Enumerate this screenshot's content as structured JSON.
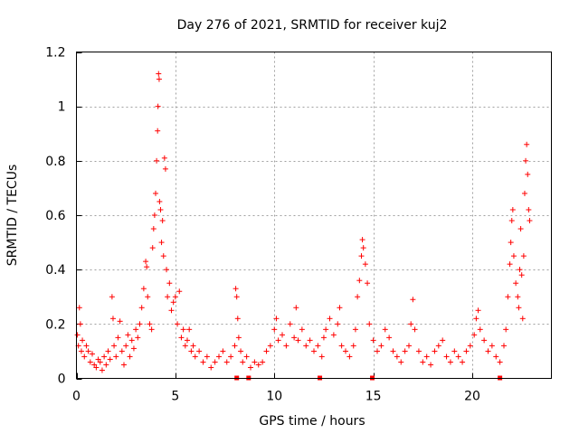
{
  "chart_data": {
    "type": "scatter",
    "title": "Day 276 of 2021, SRMTID for receiver kuj2",
    "xlabel": "GPS time / hours",
    "ylabel": "SRMTID / TECUs",
    "xlim": [
      0,
      24
    ],
    "ylim": [
      0,
      1.2
    ],
    "x_ticks": [
      0,
      5,
      10,
      15,
      20
    ],
    "x_tick_labels": [
      "0",
      "5",
      "10",
      "15",
      "20"
    ],
    "y_ticks": [
      0,
      0.2,
      0.4,
      0.6,
      0.8,
      1.0,
      1.2
    ],
    "y_tick_labels": [
      "0",
      "0.2",
      "0.4",
      "0.6",
      "0.8",
      "1",
      "1.2"
    ],
    "grid": true,
    "marker": "+",
    "color": "#ff0000",
    "series": [
      {
        "name": "SRMTID",
        "points": [
          [
            0.05,
            0.16
          ],
          [
            0.1,
            0.12
          ],
          [
            0.15,
            0.26
          ],
          [
            0.2,
            0.2
          ],
          [
            0.25,
            0.1
          ],
          [
            0.3,
            0.14
          ],
          [
            0.4,
            0.08
          ],
          [
            0.5,
            0.12
          ],
          [
            0.6,
            0.1
          ],
          [
            0.7,
            0.06
          ],
          [
            0.8,
            0.09
          ],
          [
            0.9,
            0.05
          ],
          [
            1.0,
            0.04
          ],
          [
            1.1,
            0.07
          ],
          [
            1.2,
            0.06
          ],
          [
            1.3,
            0.03
          ],
          [
            1.4,
            0.08
          ],
          [
            1.5,
            0.05
          ],
          [
            1.6,
            0.1
          ],
          [
            1.7,
            0.07
          ],
          [
            1.8,
            0.3
          ],
          [
            1.85,
            0.22
          ],
          [
            1.9,
            0.12
          ],
          [
            2.0,
            0.08
          ],
          [
            2.1,
            0.15
          ],
          [
            2.2,
            0.21
          ],
          [
            2.3,
            0.1
          ],
          [
            2.4,
            0.05
          ],
          [
            2.5,
            0.12
          ],
          [
            2.6,
            0.16
          ],
          [
            2.7,
            0.08
          ],
          [
            2.8,
            0.14
          ],
          [
            2.9,
            0.11
          ],
          [
            3.0,
            0.18
          ],
          [
            3.1,
            0.15
          ],
          [
            3.2,
            0.2
          ],
          [
            3.3,
            0.26
          ],
          [
            3.4,
            0.33
          ],
          [
            3.5,
            0.43
          ],
          [
            3.55,
            0.41
          ],
          [
            3.6,
            0.3
          ],
          [
            3.7,
            0.2
          ],
          [
            3.8,
            0.18
          ],
          [
            3.85,
            0.48
          ],
          [
            3.9,
            0.55
          ],
          [
            3.95,
            0.6
          ],
          [
            4.0,
            0.68
          ],
          [
            4.05,
            0.8
          ],
          [
            4.1,
            0.91
          ],
          [
            4.12,
            1.0
          ],
          [
            4.15,
            1.12
          ],
          [
            4.18,
            1.1
          ],
          [
            4.2,
            0.65
          ],
          [
            4.25,
            0.62
          ],
          [
            4.3,
            0.5
          ],
          [
            4.35,
            0.58
          ],
          [
            4.4,
            0.45
          ],
          [
            4.45,
            0.81
          ],
          [
            4.5,
            0.77
          ],
          [
            4.55,
            0.4
          ],
          [
            4.6,
            0.3
          ],
          [
            4.7,
            0.35
          ],
          [
            4.8,
            0.25
          ],
          [
            4.9,
            0.28
          ],
          [
            5.0,
            0.3
          ],
          [
            5.1,
            0.2
          ],
          [
            5.2,
            0.32
          ],
          [
            5.3,
            0.15
          ],
          [
            5.4,
            0.18
          ],
          [
            5.5,
            0.12
          ],
          [
            5.6,
            0.14
          ],
          [
            5.7,
            0.18
          ],
          [
            5.8,
            0.1
          ],
          [
            5.9,
            0.12
          ],
          [
            6.0,
            0.08
          ],
          [
            6.2,
            0.1
          ],
          [
            6.4,
            0.06
          ],
          [
            6.6,
            0.08
          ],
          [
            6.8,
            0.04
          ],
          [
            7.0,
            0.06
          ],
          [
            7.2,
            0.08
          ],
          [
            7.4,
            0.1
          ],
          [
            7.6,
            0.06
          ],
          [
            7.8,
            0.08
          ],
          [
            8.0,
            0.12
          ],
          [
            8.05,
            0.33
          ],
          [
            8.1,
            0.3
          ],
          [
            8.15,
            0.22
          ],
          [
            8.2,
            0.15
          ],
          [
            8.3,
            0.1
          ],
          [
            8.4,
            0.06
          ],
          [
            8.6,
            0.08
          ],
          [
            8.8,
            0.04
          ],
          [
            9.0,
            0.06
          ],
          [
            9.2,
            0.05
          ],
          [
            9.4,
            0.06
          ],
          [
            9.6,
            0.1
          ],
          [
            9.8,
            0.12
          ],
          [
            10.0,
            0.18
          ],
          [
            10.1,
            0.22
          ],
          [
            10.2,
            0.14
          ],
          [
            10.4,
            0.16
          ],
          [
            10.6,
            0.12
          ],
          [
            10.8,
            0.2
          ],
          [
            11.0,
            0.15
          ],
          [
            11.1,
            0.26
          ],
          [
            11.2,
            0.14
          ],
          [
            11.4,
            0.18
          ],
          [
            11.6,
            0.12
          ],
          [
            11.8,
            0.14
          ],
          [
            12.0,
            0.1
          ],
          [
            12.2,
            0.12
          ],
          [
            12.4,
            0.08
          ],
          [
            12.5,
            0.15
          ],
          [
            12.6,
            0.18
          ],
          [
            12.8,
            0.22
          ],
          [
            13.0,
            0.16
          ],
          [
            13.2,
            0.2
          ],
          [
            13.3,
            0.26
          ],
          [
            13.4,
            0.12
          ],
          [
            13.6,
            0.1
          ],
          [
            13.8,
            0.08
          ],
          [
            14.0,
            0.12
          ],
          [
            14.1,
            0.18
          ],
          [
            14.2,
            0.3
          ],
          [
            14.3,
            0.36
          ],
          [
            14.4,
            0.45
          ],
          [
            14.45,
            0.51
          ],
          [
            14.5,
            0.48
          ],
          [
            14.6,
            0.42
          ],
          [
            14.7,
            0.35
          ],
          [
            14.8,
            0.2
          ],
          [
            15.0,
            0.14
          ],
          [
            15.2,
            0.1
          ],
          [
            15.4,
            0.12
          ],
          [
            15.6,
            0.18
          ],
          [
            15.8,
            0.15
          ],
          [
            16.0,
            0.1
          ],
          [
            16.2,
            0.08
          ],
          [
            16.4,
            0.06
          ],
          [
            16.6,
            0.1
          ],
          [
            16.8,
            0.12
          ],
          [
            16.9,
            0.2
          ],
          [
            17.0,
            0.29
          ],
          [
            17.1,
            0.18
          ],
          [
            17.3,
            0.1
          ],
          [
            17.5,
            0.06
          ],
          [
            17.7,
            0.08
          ],
          [
            17.9,
            0.05
          ],
          [
            18.1,
            0.1
          ],
          [
            18.3,
            0.12
          ],
          [
            18.5,
            0.14
          ],
          [
            18.7,
            0.08
          ],
          [
            18.9,
            0.06
          ],
          [
            19.1,
            0.1
          ],
          [
            19.3,
            0.08
          ],
          [
            19.5,
            0.06
          ],
          [
            19.7,
            0.1
          ],
          [
            19.9,
            0.12
          ],
          [
            20.1,
            0.16
          ],
          [
            20.2,
            0.22
          ],
          [
            20.3,
            0.25
          ],
          [
            20.4,
            0.18
          ],
          [
            20.6,
            0.14
          ],
          [
            20.8,
            0.1
          ],
          [
            21.0,
            0.12
          ],
          [
            21.2,
            0.08
          ],
          [
            21.4,
            0.06
          ],
          [
            21.6,
            0.12
          ],
          [
            21.7,
            0.18
          ],
          [
            21.8,
            0.3
          ],
          [
            21.9,
            0.42
          ],
          [
            21.95,
            0.5
          ],
          [
            22.0,
            0.58
          ],
          [
            22.05,
            0.62
          ],
          [
            22.1,
            0.45
          ],
          [
            22.2,
            0.35
          ],
          [
            22.3,
            0.3
          ],
          [
            22.35,
            0.26
          ],
          [
            22.4,
            0.4
          ],
          [
            22.45,
            0.55
          ],
          [
            22.5,
            0.38
          ],
          [
            22.55,
            0.22
          ],
          [
            22.6,
            0.45
          ],
          [
            22.65,
            0.68
          ],
          [
            22.7,
            0.8
          ],
          [
            22.75,
            0.86
          ],
          [
            22.8,
            0.75
          ],
          [
            22.85,
            0.62
          ],
          [
            22.9,
            0.58
          ]
        ]
      }
    ],
    "x_axis_markers": [
      8.1,
      8.7,
      12.3,
      14.95,
      21.4
    ]
  }
}
